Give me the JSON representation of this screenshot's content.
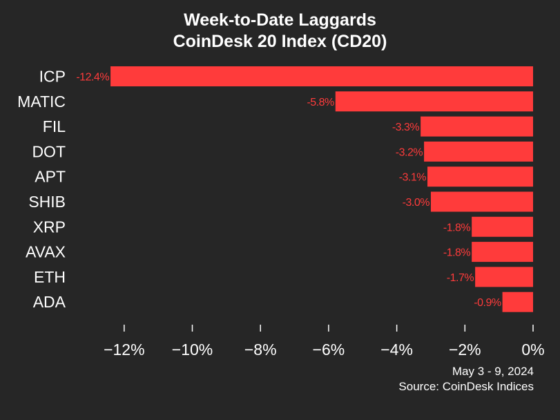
{
  "chart_data": {
    "type": "bar",
    "orientation": "horizontal",
    "title": "Week-to-Date Laggards",
    "subtitle": "CoinDesk 20 Index (CD20)",
    "categories": [
      "ICP",
      "MATIC",
      "FIL",
      "DOT",
      "APT",
      "SHIB",
      "XRP",
      "AVAX",
      "ETH",
      "ADA"
    ],
    "values": [
      -12.4,
      -5.8,
      -3.3,
      -3.2,
      -3.1,
      -3.0,
      -1.8,
      -1.8,
      -1.7,
      -0.9
    ],
    "value_labels": [
      "-12.4%",
      "-5.8%",
      "-3.3%",
      "-3.2%",
      "-3.1%",
      "-3.0%",
      "-1.8%",
      "-1.8%",
      "-1.7%",
      "-0.9%"
    ],
    "xlim": [
      -13,
      0
    ],
    "x_ticks": [
      -12,
      -10,
      -8,
      -6,
      -4,
      -2,
      0
    ],
    "x_tick_labels": [
      "−12%",
      "−10%",
      "−8%",
      "−6%",
      "−4%",
      "−2%",
      "0%"
    ],
    "xlabel": "",
    "ylabel": "",
    "grid": false,
    "legend": "none",
    "colors": {
      "bar": "#ff3b3b",
      "value_label": "#ff3b3b",
      "background": "#262626",
      "text": "#ffffff"
    }
  },
  "footer": {
    "date_range": "May 3 - 9, 2024",
    "source": "Source: CoinDesk Indices"
  }
}
